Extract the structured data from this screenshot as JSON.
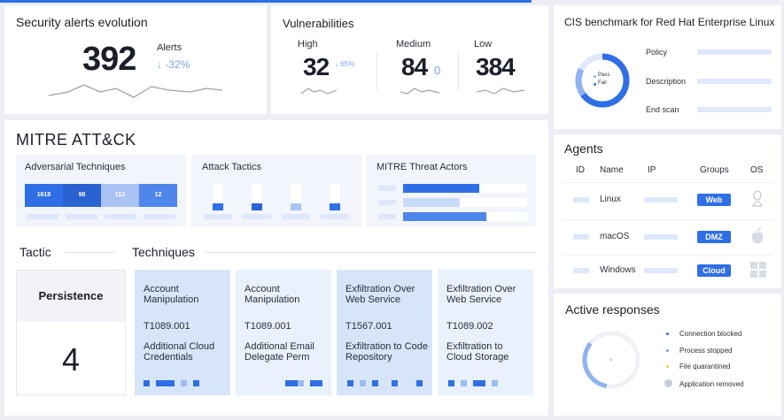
{
  "security_alerts": {
    "title": "Security alerts evolution",
    "count": "392",
    "label": "Alerts",
    "change": "↓ -32%"
  },
  "vulnerabilities": {
    "title": "Vulnerabilities",
    "high_label": "High",
    "high_value": "32",
    "high_change": "↓ 65%",
    "medium_label": "Medium",
    "medium_value": "84",
    "medium_change": "0",
    "low_label": "Low",
    "low_value": "384"
  },
  "cis": {
    "title": "CIS benchmark for Red Hat Enterprise Linux",
    "legend_pass": "Pass",
    "legend_fail": "Fail",
    "policy": "Policy",
    "description": "Description",
    "end_scan": "End scan"
  },
  "mitre": {
    "title": "MITRE ATT&CK",
    "adversarial_title": "Adversarial Techniques",
    "adversarial_values": [
      "1618",
      "98",
      "112",
      "12"
    ],
    "attack_tactics_title": "Attack Tactics",
    "threat_actors_title": "MITRE Threat Actors",
    "tactic_header": "Tactic",
    "techniques_header": "Techniques",
    "tactic_name": "Persistence",
    "tactic_count": "4",
    "techniques": [
      {
        "name": "Account Manipulation",
        "id": "T1089.001",
        "sub": "Additional Cloud Credentials"
      },
      {
        "name": "Account Manipulation",
        "id": "T1089.001",
        "sub": "Additional Email Delegate Perm"
      },
      {
        "name": "Exfiltration Over Web Service",
        "id": "T1567.001",
        "sub": "Exfiltration to Code Repository"
      },
      {
        "name": "Exfiltration Over Web Service",
        "id": "T1089.002",
        "sub": "Exfiltration to Cloud Storage"
      }
    ]
  },
  "agents": {
    "title": "Agents",
    "columns": [
      "ID",
      "Name",
      "IP",
      "Groups",
      "OS"
    ],
    "rows": [
      {
        "name": "Linux",
        "group": "Web",
        "os_icon": "linux-icon"
      },
      {
        "name": "macOS",
        "group": "DMZ",
        "os_icon": "apple-icon"
      },
      {
        "name": "Windows",
        "group": "Cloud",
        "os_icon": "windows-icon"
      }
    ]
  },
  "active_responses": {
    "title": "Active responses",
    "legend": [
      "Connection blocked",
      "Process stopped",
      "File quarantined",
      "Application removed"
    ],
    "colors": [
      "#2f6fe6",
      "#6e9df0",
      "#f2c94c",
      "#c7cedb"
    ]
  }
}
